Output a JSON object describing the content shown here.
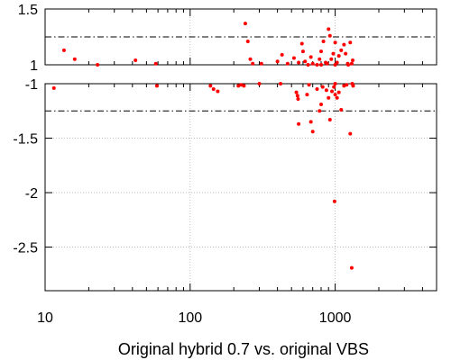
{
  "chart_data": {
    "type": "scatter",
    "xlabel": "Original hybrid 0.7 vs. original VBS",
    "xscale": "log",
    "xlim": [
      10,
      5000
    ],
    "grid": true,
    "point_color": "#ff0000",
    "x_ticks": [
      {
        "value": 10,
        "label": "10"
      },
      {
        "value": 100,
        "label": "100"
      },
      {
        "value": 1000,
        "label": "1000"
      }
    ],
    "panels": [
      {
        "name": "upper",
        "ylim": [
          1.0,
          1.5
        ],
        "y_ticks": [
          {
            "value": 1.5,
            "label": "1.5"
          },
          {
            "value": 1.0,
            "label": "1"
          }
        ],
        "ref_lines": [
          {
            "y": 1.25,
            "style": "dash-dot"
          },
          {
            "y": 1.0,
            "style": "dashed"
          }
        ],
        "points": [
          [
            13.5,
            1.13
          ],
          [
            16,
            1.05
          ],
          [
            23,
            1.0
          ],
          [
            42,
            1.04
          ],
          [
            58,
            1.01
          ],
          [
            240,
            1.37
          ],
          [
            250,
            1.21
          ],
          [
            260,
            1.05
          ],
          [
            270,
            1.01
          ],
          [
            310,
            1.01
          ],
          [
            400,
            1.03
          ],
          [
            430,
            1.09
          ],
          [
            470,
            1.01
          ],
          [
            520,
            1.06
          ],
          [
            560,
            1.02
          ],
          [
            590,
            1.19
          ],
          [
            600,
            1.12
          ],
          [
            620,
            1.03
          ],
          [
            650,
            1.0
          ],
          [
            680,
            1.07
          ],
          [
            700,
            1.01
          ],
          [
            750,
            1.0
          ],
          [
            780,
            1.05
          ],
          [
            800,
            1.12
          ],
          [
            830,
            1.21
          ],
          [
            860,
            1.02
          ],
          [
            880,
            1.01
          ],
          [
            900,
            1.32
          ],
          [
            920,
            1.26
          ],
          [
            940,
            1.05
          ],
          [
            970,
            1.1
          ],
          [
            1000,
            1.2
          ],
          [
            1030,
            1.02
          ],
          [
            1060,
            1.08
          ],
          [
            1100,
            1.13
          ],
          [
            1150,
            1.18
          ],
          [
            1180,
            1.1
          ],
          [
            1220,
            1.01
          ],
          [
            1270,
            1.2
          ],
          [
            1300,
            1.01
          ],
          [
            1320,
            1.04
          ],
          [
            800,
            1.0
          ],
          [
            1000,
            1.0
          ],
          [
            1230,
            1.0
          ]
        ]
      },
      {
        "name": "lower",
        "ylim": [
          -2.9,
          -1.0
        ],
        "y_ticks": [
          {
            "value": -1.0,
            "label": "-1"
          },
          {
            "value": -1.5,
            "label": "-1.5"
          },
          {
            "value": -2.0,
            "label": "-2"
          },
          {
            "value": -2.5,
            "label": "-2.5"
          }
        ],
        "ref_lines": [
          {
            "y": -1.0,
            "style": "dashed"
          },
          {
            "y": -1.25,
            "style": "dash-dot"
          }
        ],
        "points": [
          [
            11.5,
            -1.04
          ],
          [
            59,
            -1.02
          ],
          [
            138,
            -1.02
          ],
          [
            145,
            -1.05
          ],
          [
            155,
            -1.07
          ],
          [
            215,
            -1.02
          ],
          [
            225,
            -1.01
          ],
          [
            235,
            -1.02
          ],
          [
            300,
            -1.0
          ],
          [
            420,
            -1.0
          ],
          [
            540,
            -1.08
          ],
          [
            550,
            -1.11
          ],
          [
            555,
            -1.14
          ],
          [
            560,
            -1.37
          ],
          [
            640,
            -1.1
          ],
          [
            680,
            -1.35
          ],
          [
            700,
            -1.44
          ],
          [
            750,
            -1.05
          ],
          [
            780,
            -1.25
          ],
          [
            800,
            -1.19
          ],
          [
            820,
            -1.03
          ],
          [
            870,
            -1.06
          ],
          [
            900,
            -1.13
          ],
          [
            920,
            -1.33
          ],
          [
            950,
            -1.07
          ],
          [
            980,
            -1.03
          ],
          [
            990,
            -2.08
          ],
          [
            1000,
            -1.1
          ],
          [
            1030,
            -1.13
          ],
          [
            1060,
            -1.08
          ],
          [
            1100,
            -1.24
          ],
          [
            1150,
            -1.02
          ],
          [
            1200,
            -1.01
          ],
          [
            1270,
            -1.46
          ],
          [
            1300,
            -2.69
          ],
          [
            1310,
            -1.0
          ],
          [
            1330,
            -1.02
          ],
          [
            660,
            -1.01
          ],
          [
            1000,
            -1.0
          ]
        ]
      }
    ]
  }
}
